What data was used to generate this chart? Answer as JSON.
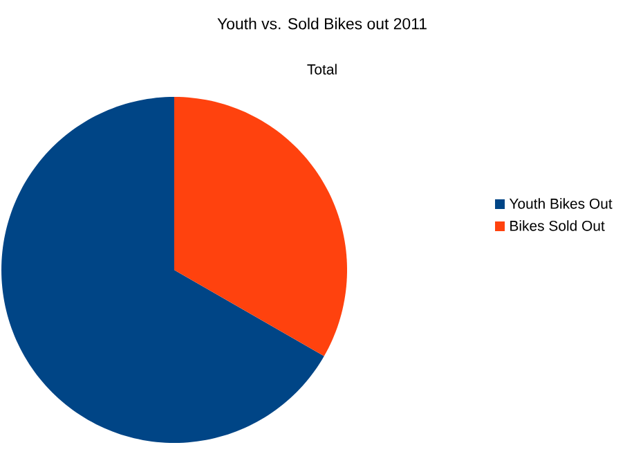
{
  "chart_data": {
    "type": "pie",
    "title": "Youth vs. Sold Bikes out 2011",
    "subtitle": "Total",
    "categories": [
      "Youth Bikes Out",
      "Bikes Sold Out"
    ],
    "values": [
      66.7,
      33.3
    ],
    "colors": [
      "#004586",
      "#ff420e"
    ],
    "legend": "right"
  }
}
